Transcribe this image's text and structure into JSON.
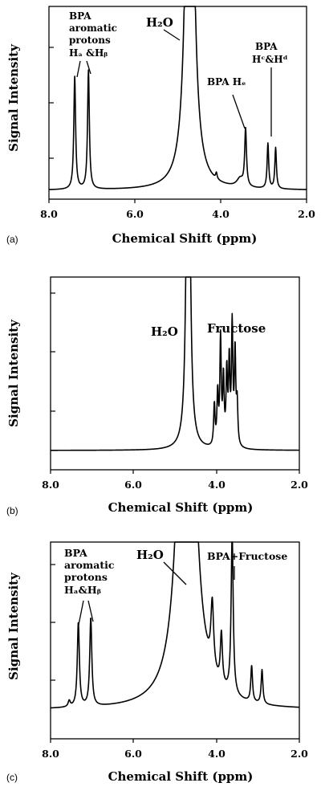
{
  "chart_data": [
    {
      "type": "line",
      "panel_label": "(a)",
      "xlabel": "Chemical Shift (ppm)",
      "ylabel": "Signal Intensity",
      "xlim": [
        8.0,
        2.0
      ],
      "x_reversed": true,
      "xticks": [
        8.0,
        6.0,
        4.0,
        2.0
      ],
      "xtick_labels": [
        "8.0",
        "6.0",
        "4.0",
        "2.0"
      ],
      "ylim": [
        0,
        100
      ],
      "yticks": [
        25,
        50,
        75
      ],
      "grid": false,
      "series": [
        {
          "peaks": [
            {
              "x": 7.4,
              "y": 55,
              "w": 0.025
            },
            {
              "x": 7.08,
              "y": 58,
              "w": 0.025
            },
            {
              "x": 4.72,
              "y": 280,
              "w": 0.09
            },
            {
              "x": 4.1,
              "y": 3,
              "w": 0.02
            },
            {
              "x": 3.55,
              "y": 4,
              "w": 0.09
            },
            {
              "x": 3.42,
              "y": 28,
              "w": 0.025
            },
            {
              "x": 2.9,
              "y": 22,
              "w": 0.022
            },
            {
              "x": 2.72,
              "y": 20,
              "w": 0.022
            }
          ],
          "baseline": 2
        }
      ],
      "annotations": [
        {
          "lines": [
            "BPA",
            "aromatic",
            "protons",
            "Hₐ &Hᵦ"
          ],
          "points_to": [
            7.4,
            7.08
          ]
        },
        {
          "text": "H₂O",
          "points_to": 4.85
        },
        {
          "text": "BPA  Hₑ",
          "points_to": 3.42
        },
        {
          "lines": [
            "BPA",
            "Hᶜ&Hᵈ"
          ],
          "points_to": 2.9
        }
      ]
    },
    {
      "type": "line",
      "panel_label": "(b)",
      "xlabel": "Chemical Shift (ppm)",
      "ylabel": "Signal Intensity",
      "xlim": [
        8.0,
        2.0
      ],
      "x_reversed": true,
      "xticks": [
        8.0,
        6.0,
        4.0,
        2.0
      ],
      "xtick_labels": [
        "8.0",
        "6.0",
        "4.0",
        "2.0"
      ],
      "ylim": [
        0,
        100
      ],
      "yticks": [
        27,
        54,
        80
      ],
      "grid": false,
      "series": [
        {
          "peaks": [
            {
              "x": 4.68,
              "y": 280,
              "w": 0.04
            },
            {
              "x": 4.05,
              "y": 20,
              "w": 0.02
            },
            {
              "x": 3.97,
              "y": 25,
              "w": 0.02
            },
            {
              "x": 3.9,
              "y": 52,
              "w": 0.02
            },
            {
              "x": 3.83,
              "y": 32,
              "w": 0.02
            },
            {
              "x": 3.75,
              "y": 35,
              "w": 0.02
            },
            {
              "x": 3.69,
              "y": 40,
              "w": 0.02
            },
            {
              "x": 3.62,
              "y": 58,
              "w": 0.02
            },
            {
              "x": 3.55,
              "y": 45,
              "w": 0.02
            },
            {
              "x": 3.5,
              "y": 20,
              "w": 0.02
            }
          ],
          "baseline": 2
        }
      ],
      "annotations": [
        {
          "text": "H₂O",
          "points_to": 4.68
        },
        {
          "text": "Fructose",
          "points_to": 3.75
        }
      ]
    },
    {
      "type": "line",
      "panel_label": "(c)",
      "xlabel": "Chemical Shift (ppm)",
      "ylabel": "Signal Intensity",
      "xlim": [
        8.0,
        2.0
      ],
      "x_reversed": true,
      "xticks": [
        8.0,
        6.0,
        4.0,
        2.0
      ],
      "xtick_labels": [
        "8.0",
        "6.0",
        "4.0",
        "2.0"
      ],
      "ylim": [
        0,
        100
      ],
      "yticks": [
        27,
        54,
        80
      ],
      "grid": false,
      "series": [
        {
          "peaks": [
            {
              "x": 7.55,
              "y": 3,
              "w": 0.03
            },
            {
              "x": 7.33,
              "y": 42,
              "w": 0.03
            },
            {
              "x": 7.03,
              "y": 44,
              "w": 0.03
            },
            {
              "x": 4.72,
              "y": 320,
              "w": 0.17
            },
            {
              "x": 4.1,
              "y": 33,
              "w": 0.04
            },
            {
              "x": 3.88,
              "y": 25,
              "w": 0.03
            },
            {
              "x": 3.62,
              "y": 80,
              "w": 0.03
            },
            {
              "x": 3.15,
              "y": 18,
              "w": 0.025
            },
            {
              "x": 2.9,
              "y": 17,
              "w": 0.025
            }
          ],
          "baseline": 2
        }
      ],
      "annotations": [
        {
          "lines": [
            "BPA",
            "aromatic",
            "protons",
            "Hₐ&Hᵦ"
          ],
          "points_to": [
            7.33,
            7.03
          ]
        },
        {
          "text": "H₂O",
          "points_to": 4.62
        },
        {
          "text": "BPA+Fructose",
          "points_to": 3.62
        }
      ]
    }
  ]
}
